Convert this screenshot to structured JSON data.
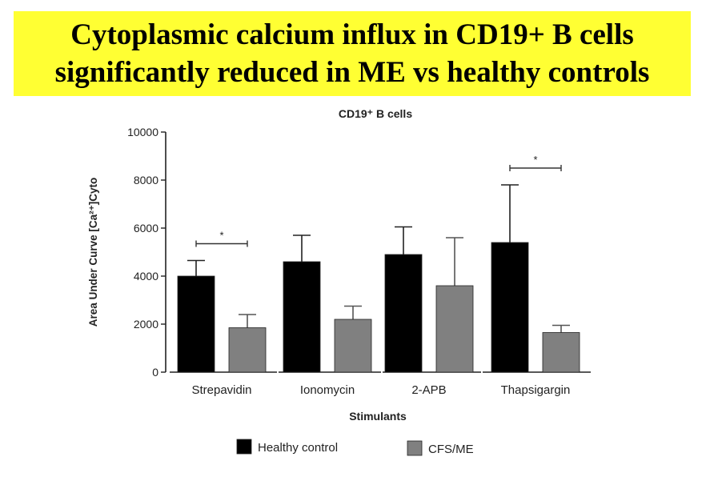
{
  "banner": {
    "line1": "Cytoplasmic calcium influx in CD19+ B cells",
    "line2": "significantly reduced in ME vs healthy controls"
  },
  "colors": {
    "banner_bg": "#ffff33",
    "healthy": "#000000",
    "cfs": "#808080"
  },
  "chart_data": {
    "type": "bar",
    "title": "CD19⁺ B cells",
    "xlabel": "Stimulants",
    "ylabel": "Area Under Curve [Ca²⁺]Cyto",
    "ylim": [
      0,
      10000
    ],
    "yticks": [
      "0",
      "2000",
      "4000",
      "6000",
      "8000",
      "10000"
    ],
    "categories": [
      "Strepavidin",
      "Ionomycin",
      "2-APB",
      "Thapsigargin"
    ],
    "series": [
      {
        "name": "Healthy control",
        "color": "#000000",
        "values": [
          4000,
          4600,
          4900,
          5400
        ],
        "errors": [
          650,
          1100,
          1150,
          2400
        ]
      },
      {
        "name": "CFS/ME",
        "color": "#808080",
        "values": [
          1850,
          2200,
          3600,
          1650
        ],
        "errors": [
          550,
          550,
          2000,
          300
        ]
      }
    ],
    "significance": [
      {
        "category": "Strepavidin",
        "label": "*"
      },
      {
        "category": "Thapsigargin",
        "label": "*"
      }
    ],
    "legend": [
      "Healthy control",
      "CFS/ME"
    ]
  }
}
